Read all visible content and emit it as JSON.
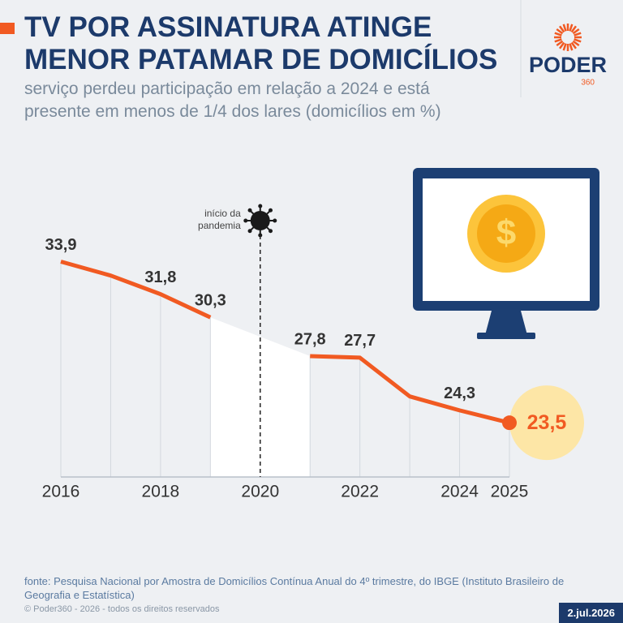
{
  "brand": {
    "name": "PODER",
    "suffix": "360"
  },
  "chart_data": {
    "type": "line",
    "title": "TV POR ASSINATURA ATINGE MENOR PATAMAR DE DOMICÍLIOS",
    "subtitle": "serviço perdeu participação em relação a 2024 e está presente em menos de 1/4 dos lares (domicílios em %)",
    "x": [
      2016,
      2017,
      2018,
      2019,
      2020,
      2021,
      2022,
      2023,
      2024,
      2025
    ],
    "values": [
      33.9,
      33.0,
      31.8,
      30.3,
      null,
      27.8,
      27.7,
      25.2,
      24.3,
      23.5
    ],
    "value_labels": [
      "33,9",
      null,
      "31,8",
      "30,3",
      null,
      "27,8",
      "27,7",
      null,
      "24,3",
      "23,5"
    ],
    "color": "#f15a22",
    "xlim": [
      2016,
      2025
    ],
    "xticks": [
      2016,
      2018,
      2020,
      2022,
      2024,
      2025
    ],
    "ylim": [
      20,
      40
    ],
    "annotation": {
      "x": 2020,
      "lines": [
        "início da",
        "pandemia"
      ]
    }
  },
  "footer": {
    "source": "fonte: Pesquisa Nacional por Amostra de Domicílios Contínua Anual do 4º trimestre, do IBGE (Instituto Brasileiro de Geografia e Estatística)",
    "copyright": "© Poder360 - 2026 - todos os direitos reservados",
    "date": "2.jul.2026"
  }
}
